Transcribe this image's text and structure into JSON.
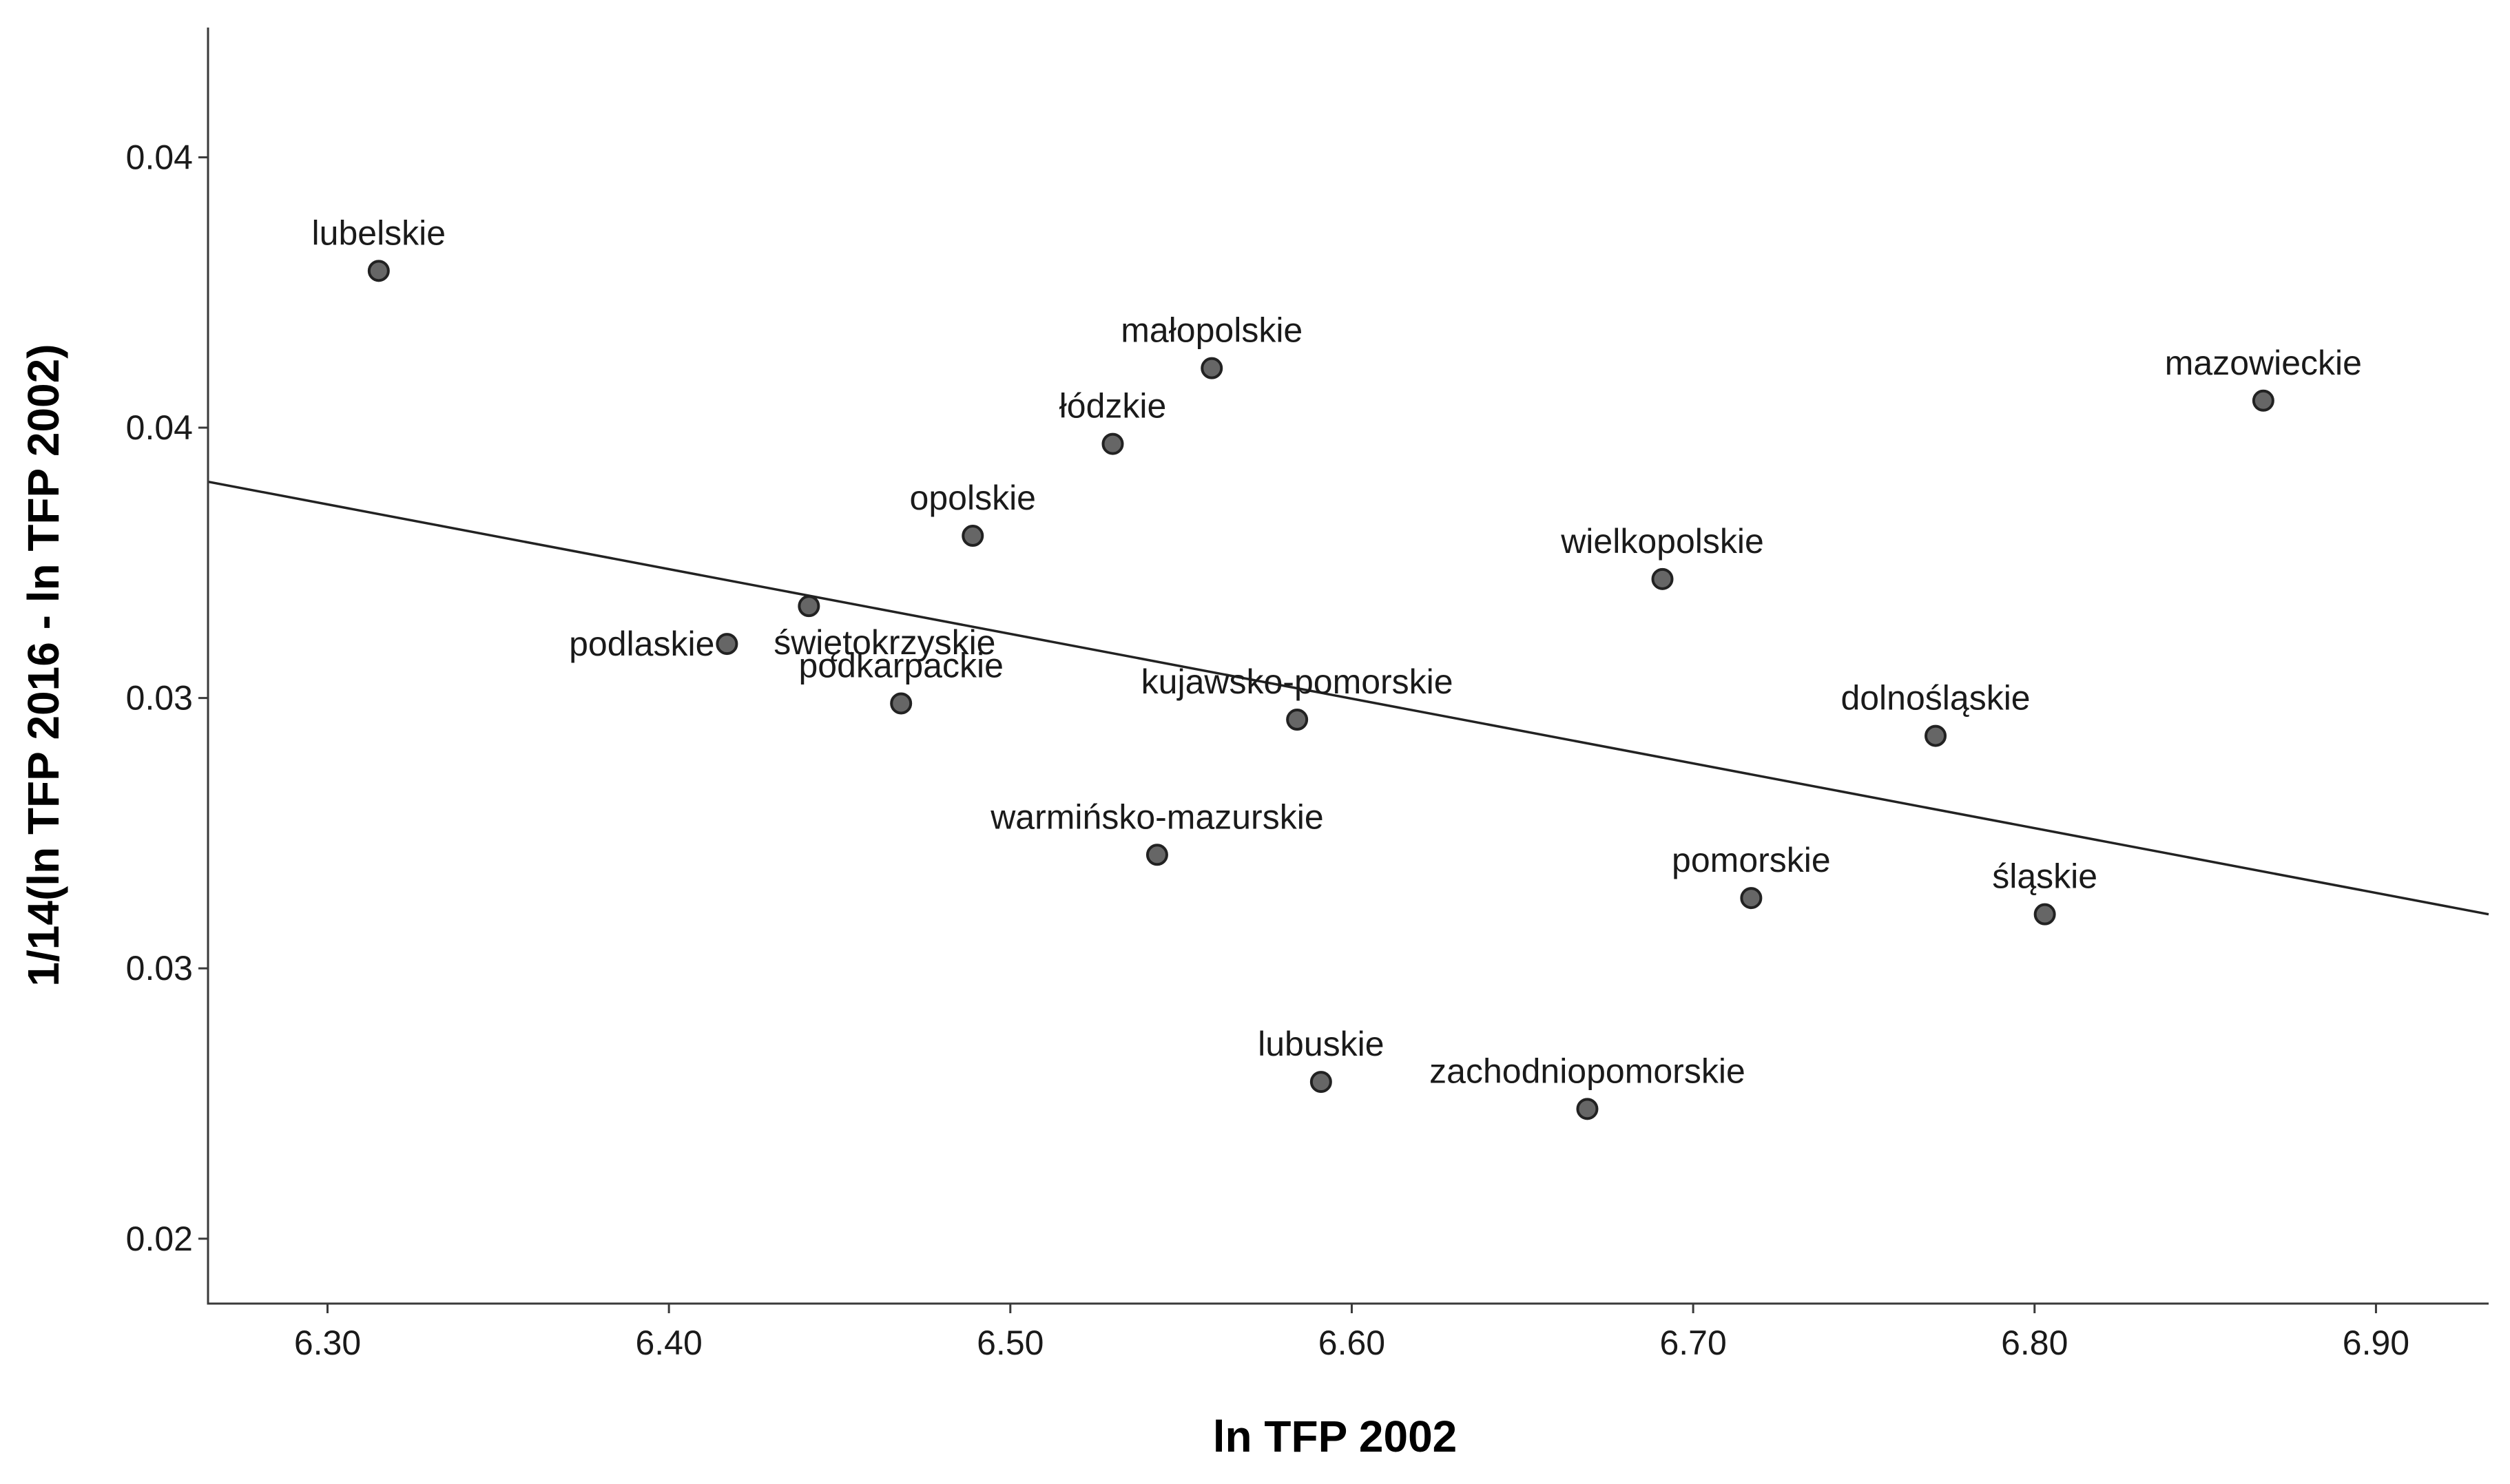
{
  "chart_data": {
    "type": "scatter",
    "title": "",
    "xlabel": "ln TFP 2002",
    "ylabel": "1/14(ln TFP 2016 - ln TFP 2002)",
    "xlim": [
      6.265,
      6.933
    ],
    "ylim": [
      0.0188,
      0.0424
    ],
    "x_ticks": [
      6.3,
      6.4,
      6.5,
      6.6,
      6.7,
      6.8,
      6.9
    ],
    "x_tick_labels": [
      "6.30",
      "6.40",
      "6.50",
      "6.60",
      "6.70",
      "6.80",
      "6.90"
    ],
    "y_ticks": [
      0.02,
      0.025,
      0.03,
      0.035,
      0.04
    ],
    "y_tick_labels": [
      "0.02",
      "0.03",
      "0.03",
      "0.04",
      "0.04"
    ],
    "grid": false,
    "points": [
      {
        "name": "lubelskie",
        "x": 6.315,
        "y": 0.0379,
        "label_pos": "above"
      },
      {
        "name": "małopolskie",
        "x": 6.559,
        "y": 0.0361,
        "label_pos": "above"
      },
      {
        "name": "łódzkie",
        "x": 6.53,
        "y": 0.0347,
        "label_pos": "above"
      },
      {
        "name": "mazowieckie",
        "x": 6.867,
        "y": 0.0355,
        "label_pos": "above"
      },
      {
        "name": "opolskie",
        "x": 6.489,
        "y": 0.033,
        "label_pos": "above"
      },
      {
        "name": "wielkopolskie",
        "x": 6.691,
        "y": 0.0322,
        "label_pos": "above"
      },
      {
        "name": "świętokrzyskie",
        "x": 6.441,
        "y": 0.0317,
        "label_pos": "below-right"
      },
      {
        "name": "podlaskie",
        "x": 6.417,
        "y": 0.031,
        "label_pos": "left"
      },
      {
        "name": "podkarpackie",
        "x": 6.468,
        "y": 0.0299,
        "label_pos": "above"
      },
      {
        "name": "kujawsko-pomorskie",
        "x": 6.584,
        "y": 0.0296,
        "label_pos": "above"
      },
      {
        "name": "dolnośląskie",
        "x": 6.771,
        "y": 0.0293,
        "label_pos": "above"
      },
      {
        "name": "warmińsko-mazurskie",
        "x": 6.543,
        "y": 0.0271,
        "label_pos": "above"
      },
      {
        "name": "pomorskie",
        "x": 6.717,
        "y": 0.0263,
        "label_pos": "above"
      },
      {
        "name": "śląskie",
        "x": 6.803,
        "y": 0.026,
        "label_pos": "above"
      },
      {
        "name": "lubuskie",
        "x": 6.591,
        "y": 0.0229,
        "label_pos": "above"
      },
      {
        "name": "zachodniopomorskie",
        "x": 6.669,
        "y": 0.0224,
        "label_pos": "above"
      }
    ],
    "fit_line": {
      "x": [
        6.265,
        6.933
      ],
      "y": [
        0.034,
        0.026
      ]
    }
  }
}
